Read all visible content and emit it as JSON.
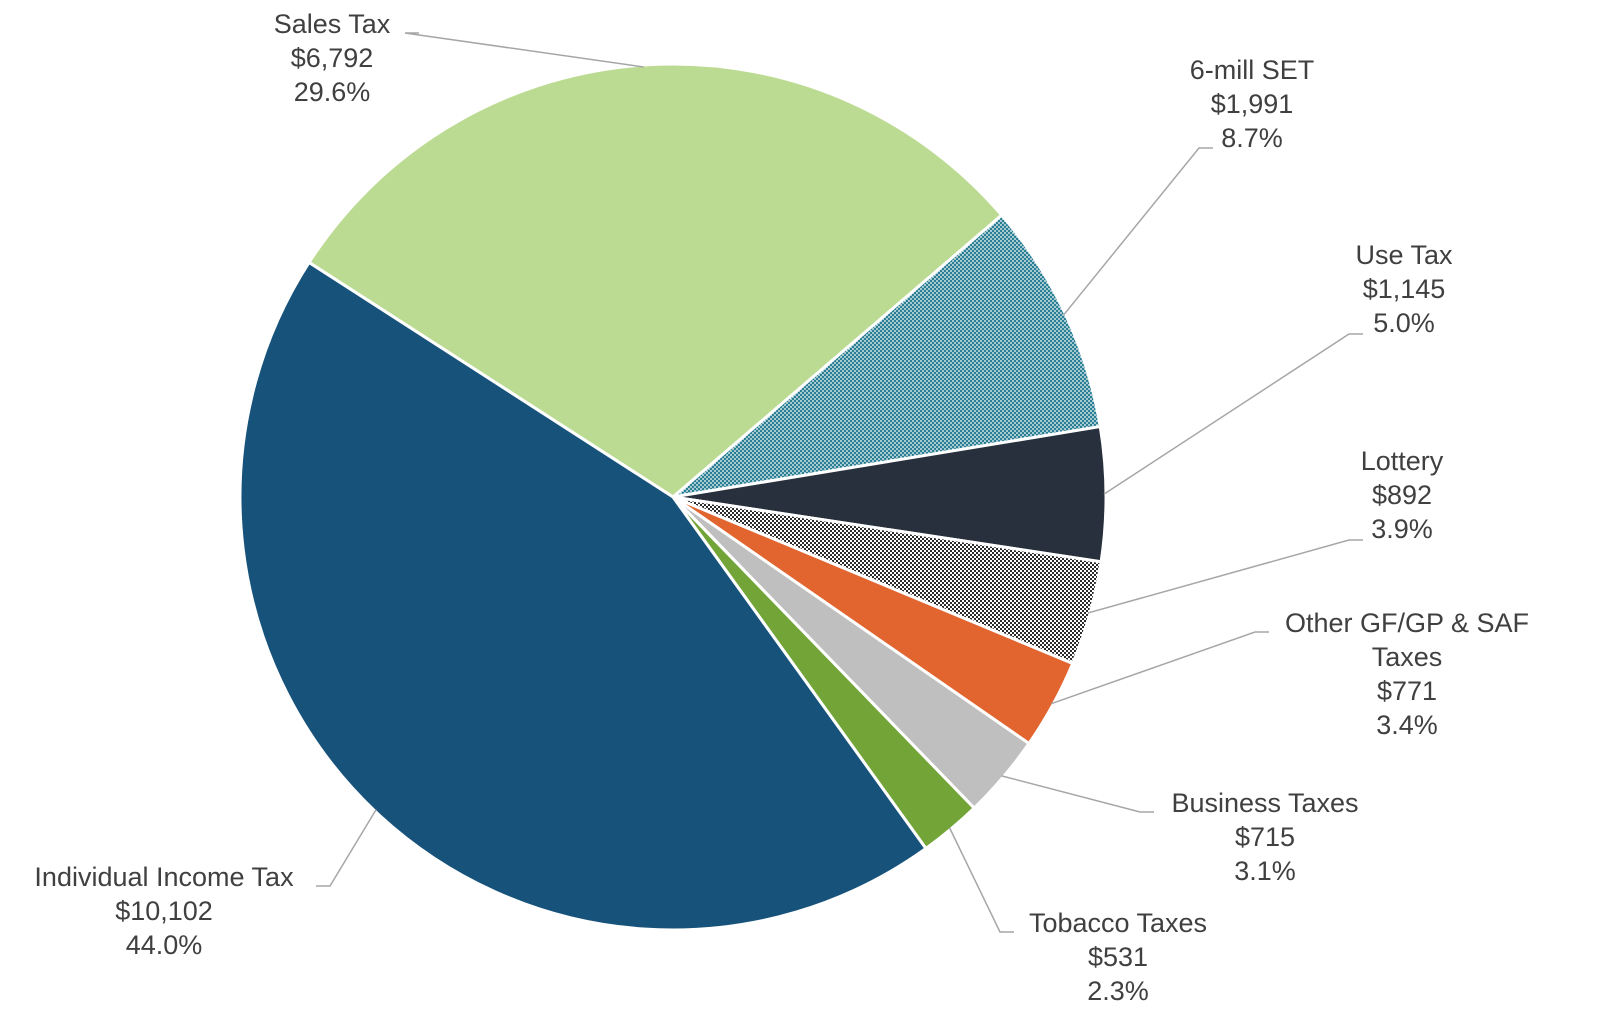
{
  "chart_data": {
    "type": "pie",
    "title": "",
    "slices": [
      {
        "label": "Sales Tax",
        "amount": "$6,792",
        "percent": "29.6%",
        "value": 6792,
        "color": "#bcdb92",
        "pattern": "solid"
      },
      {
        "label": "6-mill SET",
        "amount": "$1,991",
        "percent": "8.7%",
        "value": 1991,
        "color": "#2a7f95",
        "pattern": "dots"
      },
      {
        "label": "Use Tax",
        "amount": "$1,145",
        "percent": "5.0%",
        "value": 1145,
        "color": "#28303d",
        "pattern": "solid"
      },
      {
        "label": "Lottery",
        "amount": "$892",
        "percent": "3.9%",
        "value": 892,
        "color": "#2b2b2b",
        "pattern": "checker"
      },
      {
        "label": "Other GF/GP & SAF Taxes",
        "label_lines": [
          "Other GF/GP & SAF",
          "Taxes"
        ],
        "amount": "$771",
        "percent": "3.4%",
        "value": 771,
        "color": "#e2652f",
        "pattern": "solid"
      },
      {
        "label": "Business Taxes",
        "amount": "$715",
        "percent": "3.1%",
        "value": 715,
        "color": "#bfbfbf",
        "pattern": "solid"
      },
      {
        "label": "Tobacco Taxes",
        "amount": "$531",
        "percent": "2.3%",
        "value": 531,
        "color": "#72a437",
        "pattern": "solid"
      },
      {
        "label": "Individual Income Tax",
        "amount": "$10,102",
        "percent": "44.0%",
        "value": 10102,
        "color": "#17527b",
        "pattern": "solid"
      }
    ]
  }
}
